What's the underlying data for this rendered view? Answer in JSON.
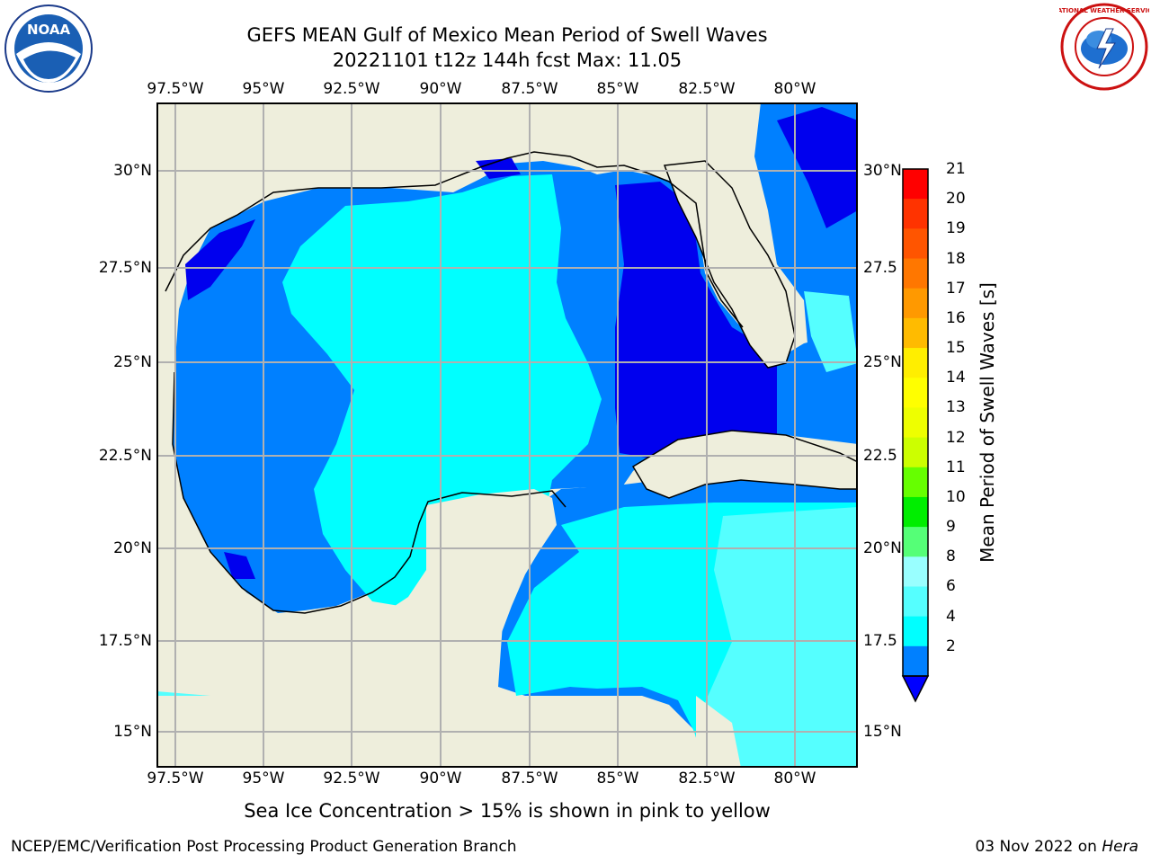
{
  "title_line1": "GEFS MEAN Gulf of Mexico Mean Period of Swell Waves",
  "title_line2": "20221101 t12z 144h fcst   Max: 11.05",
  "lon_ticks": [
    "97.5°W",
    "95°W",
    "92.5°W",
    "90°W",
    "87.5°W",
    "85°W",
    "82.5°W",
    "80°W"
  ],
  "lat_ticks_left": [
    "30°N",
    "27.5°N",
    "25°N",
    "22.5°N",
    "20°N",
    "17.5°N",
    "15°N"
  ],
  "lat_ticks_right": [
    "30°N",
    "27.5",
    "25°N",
    "22.5",
    "20°N",
    "17.5",
    "15°N"
  ],
  "colorbar": {
    "title": "Mean Period of Swell Waves [s]",
    "labels": [
      "21",
      "20",
      "19",
      "18",
      "17",
      "16",
      "15",
      "14",
      "13",
      "12",
      "11",
      "10",
      "9",
      "8",
      "6",
      "4",
      "2"
    ],
    "colors": [
      "#ff0000",
      "#ff3300",
      "#ff5500",
      "#ff7700",
      "#ff9900",
      "#ffbb00",
      "#ffee00",
      "#ffff00",
      "#eeff00",
      "#ccff00",
      "#66ff00",
      "#00ee00",
      "#55ff77",
      "#99ffff",
      "#55ffff",
      "#00ffff",
      "#0080ff"
    ],
    "extend_color": "#0000ff"
  },
  "colors": {
    "land": "#eeeedc",
    "grid": "#b0b0b0",
    "deep_blue": "#0000ee",
    "blue": "#0080ff",
    "cyan": "#00ffff",
    "light_cyan": "#55ffff",
    "pale_cyan": "#99ffff",
    "green": "#55ff77"
  },
  "footnote": "Sea Ice Concentration > 15% is shown in pink to yellow",
  "credit": "NCEP/EMC/Verification Post Processing Product Generation Branch",
  "date": "03 Nov 2022 on",
  "machine": "Hera",
  "logos": {
    "left": "NOAA",
    "right": "NATIONAL WEATHER SERVICE"
  }
}
